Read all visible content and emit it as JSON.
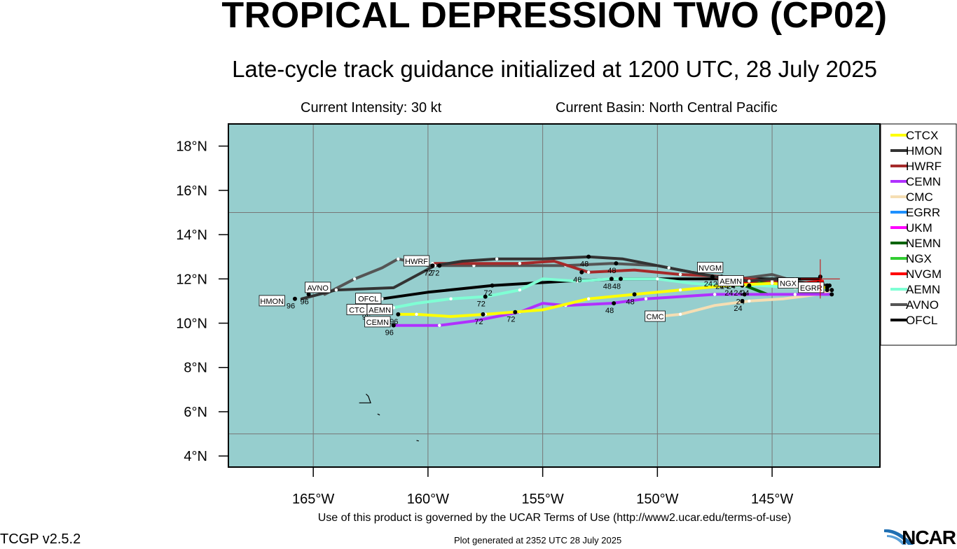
{
  "header": {
    "title": "TROPICAL DEPRESSION TWO (CP02)",
    "subtitle": "Late-cycle track guidance initialized at 1200 UTC, 28 July 2025",
    "intensity": "Current Intensity: 30 kt",
    "basin": "Current Basin: North Central Pacific"
  },
  "footer": {
    "terms": "Use of this product is governed by the UCAR Terms of Use (http://www2.ucar.edu/terms-of-use)",
    "version": "TCGP v2.5.2",
    "generated": "Plot generated at 2352 UTC   28 July 2025",
    "logo": "NCAR"
  },
  "colors": {
    "ocean": "#96cece",
    "grid": "#777777",
    "frame": "#000000"
  },
  "chart_data": {
    "type": "line",
    "xlabel": "",
    "ylabel": "",
    "xlim": [
      -168.7,
      -140.3
    ],
    "ylim": [
      3.5,
      19.0
    ],
    "x_ticks": [
      -165,
      -160,
      -155,
      -150,
      -145
    ],
    "x_tick_labels": [
      "165°W",
      "160°W",
      "155°W",
      "150°W",
      "145°W"
    ],
    "y_ticks": [
      4,
      6,
      8,
      10,
      12,
      14,
      16,
      18
    ],
    "y_tick_labels": [
      "4°N",
      "6°N",
      "8°N",
      "10°N",
      "12°N",
      "14°N",
      "16°N",
      "18°N"
    ],
    "grid_lons": [
      -165,
      -160,
      -155,
      -150,
      -145
    ],
    "grid_lats": [
      5,
      15
    ],
    "legend_position": "right",
    "current_position": [
      -142.9,
      12.0
    ],
    "series": [
      {
        "name": "CTCX",
        "color": "#ffff00",
        "points": [
          [
            -142.6,
            11.6
          ],
          [
            -145,
            11.8
          ],
          [
            -147,
            11.7
          ],
          [
            -149,
            11.5
          ],
          [
            -151,
            11.3
          ],
          [
            -153,
            11.1
          ],
          [
            -155,
            10.6
          ],
          [
            -157.5,
            10.4
          ],
          [
            -159,
            10.3
          ],
          [
            -160.5,
            10.4
          ],
          [
            -161.3,
            10.4
          ]
        ],
        "markers": [
          [
            -142.6,
            11.6,
            "."
          ],
          [
            -146.7,
            11.7,
            "24"
          ],
          [
            -151,
            11.3,
            "48"
          ],
          [
            -157.6,
            10.4,
            "72"
          ],
          [
            -161.3,
            10.4,
            "96"
          ]
        ]
      },
      {
        "name": "HMON",
        "color": "#333333",
        "points": [
          [
            -142.5,
            11.7
          ],
          [
            -143.5,
            11.8
          ],
          [
            -145,
            12.0
          ],
          [
            -146,
            11.9
          ],
          [
            -147.5,
            12.1
          ],
          [
            -149.5,
            12.5
          ],
          [
            -151.5,
            12.9
          ],
          [
            -153,
            13.0
          ],
          [
            -155,
            12.9
          ],
          [
            -157,
            12.9
          ],
          [
            -158.5,
            12.8
          ],
          [
            -159.7,
            12.6
          ],
          [
            -161.5,
            11.6
          ],
          [
            -164,
            11.5
          ],
          [
            -165.5,
            11.1
          ]
        ],
        "markers": [
          [
            -142.5,
            11.7,
            "."
          ],
          [
            -146.9,
            12.0,
            "24"
          ],
          [
            -153,
            13.0,
            "48"
          ],
          [
            -159.5,
            12.6,
            "72"
          ],
          [
            -165.8,
            11.1,
            "96"
          ]
        ]
      },
      {
        "name": "HWRF",
        "color": "#a52a2a",
        "points": [
          [
            -143,
            11.8
          ],
          [
            -145,
            11.9
          ],
          [
            -147,
            12.1
          ],
          [
            -149,
            12.2
          ],
          [
            -151,
            12.4
          ],
          [
            -153,
            12.3
          ],
          [
            -154.5,
            12.8
          ],
          [
            -156,
            12.7
          ],
          [
            -158,
            12.7
          ],
          [
            -159.8,
            12.7
          ]
        ],
        "markers": [
          [
            -143,
            11.8,
            "."
          ],
          [
            -147.2,
            12.1,
            "24"
          ],
          [
            -153.3,
            12.3,
            "48"
          ],
          [
            -159.8,
            12.6,
            "72"
          ]
        ]
      },
      {
        "name": "CEMN",
        "color": "#b030ff",
        "points": [
          [
            -142.4,
            11.3
          ],
          [
            -144,
            11.3
          ],
          [
            -146,
            11.3
          ],
          [
            -147.5,
            11.3
          ],
          [
            -149,
            11.2
          ],
          [
            -150.5,
            11.1
          ],
          [
            -152,
            10.9
          ],
          [
            -154,
            10.8
          ],
          [
            -155,
            10.9
          ],
          [
            -156,
            10.5
          ],
          [
            -158,
            10.1
          ],
          [
            -159.5,
            9.9
          ],
          [
            -160.5,
            9.9
          ],
          [
            -161.5,
            9.9
          ]
        ],
        "markers": [
          [
            -142.4,
            11.3,
            "."
          ],
          [
            -146.2,
            11.3,
            "24"
          ],
          [
            -151.9,
            10.9,
            "48"
          ],
          [
            -156.2,
            10.5,
            "72"
          ],
          [
            -161.5,
            9.9,
            "96"
          ]
        ]
      },
      {
        "name": "CMC",
        "color": "#f5deb3",
        "points": [
          [
            -142.4,
            11.5
          ],
          [
            -143,
            11.3
          ],
          [
            -144.5,
            11.1
          ],
          [
            -146,
            11.0
          ],
          [
            -147.5,
            10.8
          ],
          [
            -149,
            10.4
          ],
          [
            -150,
            10.3
          ]
        ],
        "markers": [
          [
            -142.4,
            11.5,
            "."
          ],
          [
            -146.3,
            11.0,
            "24"
          ]
        ]
      },
      {
        "name": "EGRR",
        "color": "#1e90ff",
        "points": [
          [
            -142.8,
            11.7
          ],
          [
            -143.5,
            11.8
          ],
          [
            -144.5,
            11.9
          ]
        ],
        "markers": []
      },
      {
        "name": "UKM",
        "color": "#ff00ff",
        "points": [
          [
            -142.8,
            11.7
          ],
          [
            -143.5,
            11.8
          ],
          [
            -144.3,
            11.8
          ]
        ],
        "markers": []
      },
      {
        "name": "NEMN",
        "color": "#006400",
        "points": [
          [
            -142.8,
            11.7
          ],
          [
            -144,
            11.8
          ],
          [
            -145,
            11.9
          ],
          [
            -146.2,
            11.7
          ],
          [
            -145.2,
            11.3
          ]
        ],
        "markers": [
          [
            -146,
            11.7,
            "24"
          ]
        ]
      },
      {
        "name": "NGX",
        "color": "#32cd32",
        "points": [
          [
            -142.8,
            11.7
          ],
          [
            -143.6,
            11.8
          ],
          [
            -144.5,
            11.8
          ]
        ],
        "markers": []
      },
      {
        "name": "NVGM",
        "color": "#ff0000",
        "points": [
          [
            -142.8,
            11.9
          ],
          [
            -144,
            11.8
          ],
          [
            -145.5,
            11.8
          ],
          [
            -146.8,
            11.9
          ],
          [
            -147.5,
            12.1
          ],
          [
            -148.5,
            12.3
          ]
        ],
        "markers": [
          [
            -147.6,
            12.1,
            "24"
          ]
        ]
      },
      {
        "name": "AEMN",
        "color": "#7fffd4",
        "points": [
          [
            -142.6,
            11.5
          ],
          [
            -144,
            11.6
          ],
          [
            -145.5,
            11.7
          ],
          [
            -147,
            11.7
          ],
          [
            -148.5,
            11.8
          ],
          [
            -150,
            12.0
          ],
          [
            -152,
            12.0
          ],
          [
            -153.5,
            11.9
          ],
          [
            -155,
            12.0
          ],
          [
            -156,
            11.5
          ],
          [
            -157.5,
            11.2
          ],
          [
            -159,
            11.1
          ],
          [
            -160.5,
            10.9
          ],
          [
            -161.5,
            10.7
          ],
          [
            -162.5,
            10.6
          ]
        ],
        "markers": [
          [
            -142.6,
            11.5,
            "."
          ],
          [
            -146.3,
            11.7,
            "24"
          ],
          [
            -152,
            12.0,
            "48"
          ],
          [
            -157.5,
            11.2,
            "72"
          ],
          [
            -162.5,
            10.6,
            "96"
          ]
        ]
      },
      {
        "name": "AVNO",
        "color": "#555555",
        "points": [
          [
            -142.6,
            11.7
          ],
          [
            -144,
            11.9
          ],
          [
            -145,
            12.2
          ],
          [
            -146.5,
            12.0
          ],
          [
            -148,
            12.2
          ],
          [
            -150,
            12.6
          ],
          [
            -152,
            12.7
          ],
          [
            -154,
            12.6
          ],
          [
            -156,
            12.6
          ],
          [
            -158,
            12.6
          ],
          [
            -160,
            12.6
          ],
          [
            -161.3,
            12.9
          ],
          [
            -162,
            12.5
          ],
          [
            -163.2,
            12.0
          ],
          [
            -164.5,
            11.3
          ]
        ],
        "markers": [
          [
            -142.6,
            11.7,
            "."
          ],
          [
            -147.1,
            12.0,
            "24"
          ],
          [
            -151.8,
            12.7,
            "48"
          ],
          [
            -159.8,
            12.6,
            "72"
          ],
          [
            -165.2,
            11.3,
            "96"
          ]
        ]
      },
      {
        "name": "OFCL",
        "color": "#000000",
        "points": [
          [
            -142.9,
            12.0
          ],
          [
            -144,
            12.0
          ],
          [
            -145,
            12.0
          ],
          [
            -146.6,
            12.0
          ],
          [
            -149,
            12.0
          ],
          [
            -151.6,
            12.0
          ],
          [
            -154,
            11.9
          ],
          [
            -157.2,
            11.7
          ],
          [
            -160,
            11.4
          ],
          [
            -162,
            11.1
          ]
        ],
        "markers": [
          [
            -142.9,
            12.1,
            "."
          ],
          [
            -146.6,
            12.0,
            "24"
          ],
          [
            -151.6,
            12.0,
            "48"
          ],
          [
            -157.2,
            11.7,
            "72"
          ],
          [
            -162.2,
            11.0,
            "96"
          ]
        ]
      }
    ],
    "model_labels": [
      {
        "text": "HMON",
        "lon": -166.8,
        "lat": 11.0
      },
      {
        "text": "AVNO",
        "lon": -164.8,
        "lat": 11.6
      },
      {
        "text": "OFCL",
        "lon": -162.6,
        "lat": 11.1
      },
      {
        "text": "AEMN",
        "lon": -162.1,
        "lat": 10.6
      },
      {
        "text": "CTC",
        "lon": -163.1,
        "lat": 10.6
      },
      {
        "text": "CEMN",
        "lon": -162.2,
        "lat": 10.05
      },
      {
        "text": "HWRF",
        "lon": -160.5,
        "lat": 12.8
      },
      {
        "text": "NVGM",
        "lon": -147.7,
        "lat": 12.5
      },
      {
        "text": "AEMN",
        "lon": -146.8,
        "lat": 11.9
      },
      {
        "text": "NGX",
        "lon": -144.3,
        "lat": 11.8
      },
      {
        "text": "EGRR",
        "lon": -143.3,
        "lat": 11.6
      },
      {
        "text": "CMC",
        "lon": -150.1,
        "lat": 10.3
      }
    ],
    "islands": [
      [
        [
          -163,
          6.4
        ],
        [
          -162.5,
          6.4
        ],
        [
          -162.6,
          6.7
        ],
        [
          -162.7,
          6.8
        ]
      ],
      [
        [
          -162.2,
          5.9
        ],
        [
          -162.1,
          5.85
        ]
      ],
      [
        [
          -160.5,
          4.7
        ],
        [
          -160.4,
          4.68
        ]
      ]
    ]
  }
}
